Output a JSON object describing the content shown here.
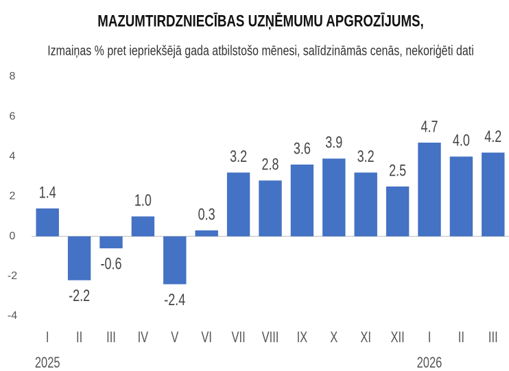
{
  "chart_data": {
    "type": "bar",
    "title": "MAZUMTIRDZNIECĪBAS UZŅĒMUMU APGROZĪJUMS,",
    "subtitle": "Izmaiņas % pret iepriekšējā gada atbilstošo mēnesi, salīdzināmās cenās, nekoriģēti dati",
    "categories": [
      "I",
      "II",
      "III",
      "IV",
      "V",
      "VI",
      "VII",
      "VIII",
      "IX",
      "X",
      "XI",
      "XII",
      "I",
      "II",
      "III"
    ],
    "years": [
      "2025",
      "2026"
    ],
    "values": [
      1.4,
      -2.2,
      -0.6,
      1.0,
      -2.4,
      0.3,
      3.2,
      2.8,
      3.6,
      3.9,
      3.2,
      2.5,
      4.7,
      4.0,
      4.2
    ],
    "value_labels": [
      "1.4",
      "-2.2",
      "-0.6",
      "1.0",
      "-2.4",
      "0.3",
      "3.2",
      "2.8",
      "3.6",
      "3.9",
      "3.2",
      "2.5",
      "4.7",
      "4.0",
      "4.2"
    ],
    "color": "#4472c4",
    "ylim": [
      -4,
      8
    ],
    "yticks": [
      -4,
      -2,
      0,
      2,
      4,
      6,
      8
    ],
    "grid": false
  }
}
